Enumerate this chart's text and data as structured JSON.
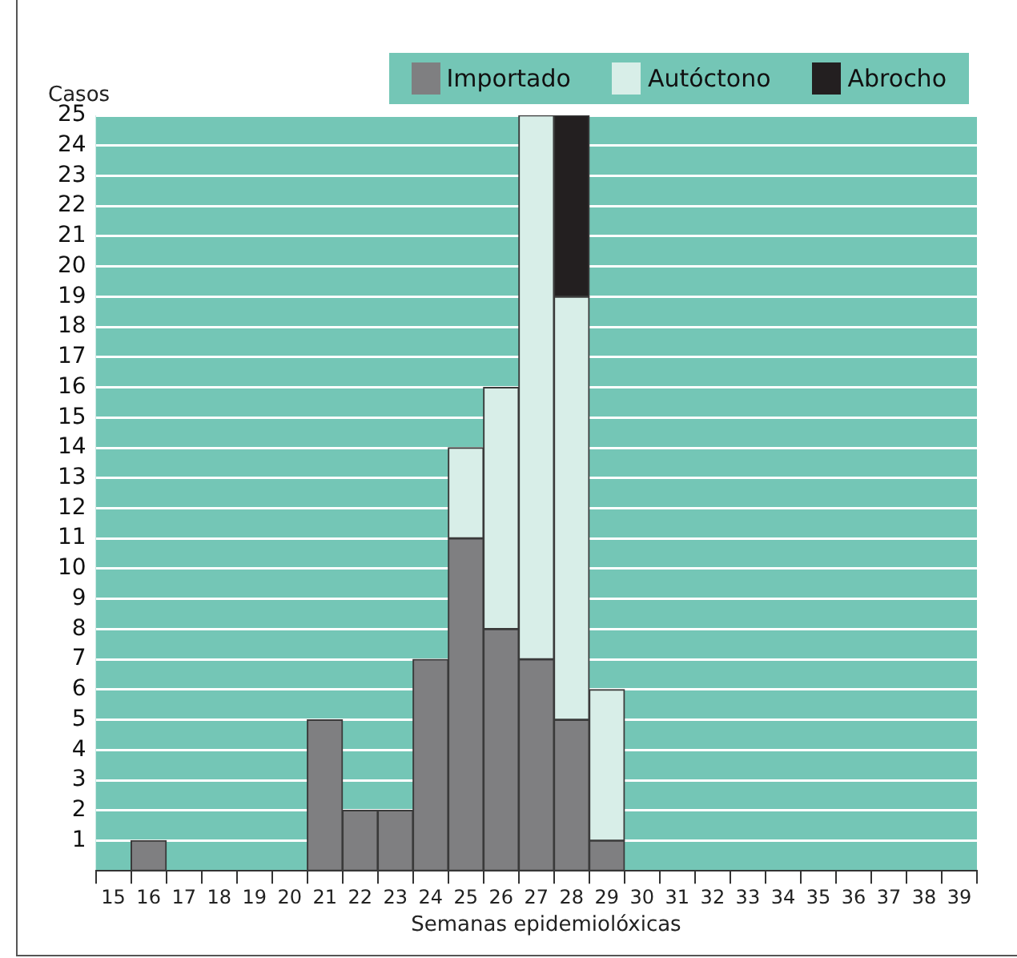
{
  "chart_data": {
    "type": "bar",
    "stacked": true,
    "ylabel": "Casos",
    "xlabel": "Semanas epidemiolóxicas",
    "categories": [
      "15",
      "16",
      "17",
      "18",
      "19",
      "20",
      "21",
      "22",
      "23",
      "24",
      "25",
      "26",
      "27",
      "28",
      "29",
      "30",
      "31",
      "32",
      "33",
      "34",
      "35",
      "36",
      "37",
      "38",
      "39"
    ],
    "series": [
      {
        "name": "Importado",
        "color": "#7f7f81",
        "values": [
          null,
          1,
          null,
          null,
          null,
          null,
          5,
          2,
          2,
          7,
          11,
          8,
          7,
          5,
          1,
          null,
          null,
          null,
          null,
          null,
          null,
          null,
          null,
          null,
          null
        ]
      },
      {
        "name": "Autóctono",
        "color": "#d8eee8",
        "values": [
          null,
          null,
          null,
          null,
          null,
          null,
          null,
          null,
          null,
          null,
          3,
          8,
          18,
          14,
          5,
          null,
          null,
          null,
          null,
          null,
          null,
          null,
          null,
          null,
          null
        ]
      },
      {
        "name": "Abrocho",
        "color": "#231f20",
        "values": [
          null,
          null,
          null,
          null,
          null,
          null,
          null,
          null,
          null,
          null,
          null,
          null,
          null,
          6,
          null,
          null,
          null,
          null,
          null,
          null,
          null,
          null,
          null,
          null,
          null
        ]
      }
    ],
    "ylim": [
      0,
      25
    ],
    "yticks": [
      1,
      2,
      3,
      4,
      5,
      6,
      7,
      8,
      9,
      10,
      11,
      12,
      13,
      14,
      15,
      16,
      17,
      18,
      19,
      20,
      21,
      22,
      23,
      24,
      25
    ],
    "grid": "y",
    "legend": "top right"
  }
}
